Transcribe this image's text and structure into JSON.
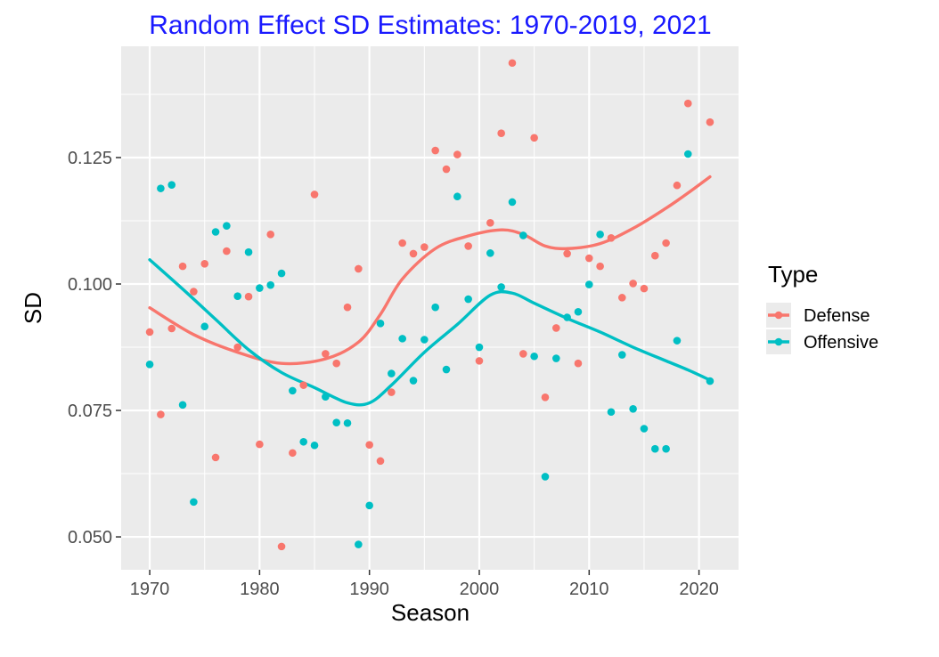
{
  "chart_data": {
    "type": "scatter",
    "title": "Random Effect SD Estimates: 1970-2019, 2021",
    "xlabel": "Season",
    "ylabel": "SD",
    "xlim": [
      1967.4,
      2023.6
    ],
    "ylim": [
      0.0435,
      0.147
    ],
    "xticks": [
      1970,
      1980,
      1990,
      2000,
      2010,
      2020
    ],
    "yticks": [
      0.05,
      0.075,
      0.1,
      0.125
    ],
    "ytick_labels": [
      "0.050",
      "0.075",
      "0.100",
      "0.125"
    ],
    "grid": true,
    "legend": {
      "title": "Type",
      "position": "right"
    },
    "series": [
      {
        "name": "Defense",
        "color": "#F8766D",
        "points": [
          [
            1970,
            0.0905
          ],
          [
            1971,
            0.0742
          ],
          [
            1972,
            0.0912
          ],
          [
            1973,
            0.1035
          ],
          [
            1974,
            0.0985
          ],
          [
            1975,
            0.104
          ],
          [
            1976,
            0.0657
          ],
          [
            1977,
            0.1065
          ],
          [
            1978,
            0.0875
          ],
          [
            1979,
            0.0975
          ],
          [
            1980,
            0.0683
          ],
          [
            1981,
            0.1098
          ],
          [
            1982,
            0.0481
          ],
          [
            1983,
            0.0666
          ],
          [
            1984,
            0.08
          ],
          [
            1985,
            0.1177
          ],
          [
            1986,
            0.0862
          ],
          [
            1987,
            0.0843
          ],
          [
            1988,
            0.0954
          ],
          [
            1989,
            0.103
          ],
          [
            1990,
            0.0682
          ],
          [
            1991,
            0.065
          ],
          [
            1992,
            0.0786
          ],
          [
            1993,
            0.1081
          ],
          [
            1994,
            0.106
          ],
          [
            1995,
            0.1073
          ],
          [
            1996,
            0.1264
          ],
          [
            1997,
            0.1227
          ],
          [
            1998,
            0.1256
          ],
          [
            1999,
            0.1075
          ],
          [
            2000,
            0.0848
          ],
          [
            2001,
            0.1121
          ],
          [
            2002,
            0.1298
          ],
          [
            2003,
            0.1437
          ],
          [
            2004,
            0.0862
          ],
          [
            2005,
            0.1289
          ],
          [
            2006,
            0.0776
          ],
          [
            2007,
            0.0913
          ],
          [
            2008,
            0.106
          ],
          [
            2009,
            0.0843
          ],
          [
            2010,
            0.1051
          ],
          [
            2011,
            0.1035
          ],
          [
            2012,
            0.1091
          ],
          [
            2013,
            0.0973
          ],
          [
            2014,
            0.1001
          ],
          [
            2015,
            0.0991
          ],
          [
            2016,
            0.1056
          ],
          [
            2017,
            0.1081
          ],
          [
            2018,
            0.1195
          ],
          [
            2019,
            0.1357
          ],
          [
            2021,
            0.132
          ]
        ],
        "smooth": [
          [
            1970,
            0.0953
          ],
          [
            1974,
            0.09
          ],
          [
            1978,
            0.0865
          ],
          [
            1982,
            0.0843
          ],
          [
            1986,
            0.0852
          ],
          [
            1989,
            0.0885
          ],
          [
            1991,
            0.094
          ],
          [
            1993,
            0.101
          ],
          [
            1996,
            0.107
          ],
          [
            1999,
            0.1095
          ],
          [
            2002,
            0.1107
          ],
          [
            2004,
            0.1098
          ],
          [
            2006,
            0.1075
          ],
          [
            2008,
            0.107
          ],
          [
            2011,
            0.108
          ],
          [
            2014,
            0.111
          ],
          [
            2017,
            0.115
          ],
          [
            2019,
            0.118
          ],
          [
            2021,
            0.1212
          ]
        ]
      },
      {
        "name": "Offensive",
        "color": "#00BFC4",
        "points": [
          [
            1970,
            0.0841
          ],
          [
            1971,
            0.1189
          ],
          [
            1972,
            0.1196
          ],
          [
            1973,
            0.0761
          ],
          [
            1974,
            0.0569
          ],
          [
            1975,
            0.0916
          ],
          [
            1976,
            0.1103
          ],
          [
            1977,
            0.1115
          ],
          [
            1978,
            0.0976
          ],
          [
            1979,
            0.1063
          ],
          [
            1980,
            0.0992
          ],
          [
            1981,
            0.0998
          ],
          [
            1982,
            0.1021
          ],
          [
            1983,
            0.0789
          ],
          [
            1984,
            0.0688
          ],
          [
            1985,
            0.0681
          ],
          [
            1986,
            0.0777
          ],
          [
            1987,
            0.0726
          ],
          [
            1988,
            0.0725
          ],
          [
            1989,
            0.0485
          ],
          [
            1990,
            0.0562
          ],
          [
            1991,
            0.0922
          ],
          [
            1992,
            0.0823
          ],
          [
            1993,
            0.0892
          ],
          [
            1994,
            0.0809
          ],
          [
            1995,
            0.089
          ],
          [
            1996,
            0.0954
          ],
          [
            1997,
            0.0831
          ],
          [
            1998,
            0.1173
          ],
          [
            1999,
            0.097
          ],
          [
            2000,
            0.0875
          ],
          [
            2001,
            0.1061
          ],
          [
            2002,
            0.0994
          ],
          [
            2003,
            0.1162
          ],
          [
            2004,
            0.1096
          ],
          [
            2005,
            0.0857
          ],
          [
            2006,
            0.0619
          ],
          [
            2007,
            0.0853
          ],
          [
            2008,
            0.0934
          ],
          [
            2009,
            0.0945
          ],
          [
            2010,
            0.0999
          ],
          [
            2011,
            0.1098
          ],
          [
            2012,
            0.0747
          ],
          [
            2013,
            0.086
          ],
          [
            2014,
            0.0753
          ],
          [
            2015,
            0.0714
          ],
          [
            2016,
            0.0674
          ],
          [
            2017,
            0.0674
          ],
          [
            2018,
            0.0888
          ],
          [
            2019,
            0.1257
          ],
          [
            2021,
            0.0808
          ]
        ],
        "smooth": [
          [
            1970,
            0.1048
          ],
          [
            1973,
            0.099
          ],
          [
            1976,
            0.093
          ],
          [
            1979,
            0.087
          ],
          [
            1982,
            0.0825
          ],
          [
            1985,
            0.0795
          ],
          [
            1988,
            0.0765
          ],
          [
            1990,
            0.0765
          ],
          [
            1992,
            0.08
          ],
          [
            1995,
            0.0865
          ],
          [
            1998,
            0.092
          ],
          [
            2001,
            0.0978
          ],
          [
            2003,
            0.0982
          ],
          [
            2005,
            0.0962
          ],
          [
            2008,
            0.0932
          ],
          [
            2011,
            0.0905
          ],
          [
            2014,
            0.0875
          ],
          [
            2017,
            0.0848
          ],
          [
            2019,
            0.083
          ],
          [
            2021,
            0.081
          ]
        ]
      }
    ]
  }
}
